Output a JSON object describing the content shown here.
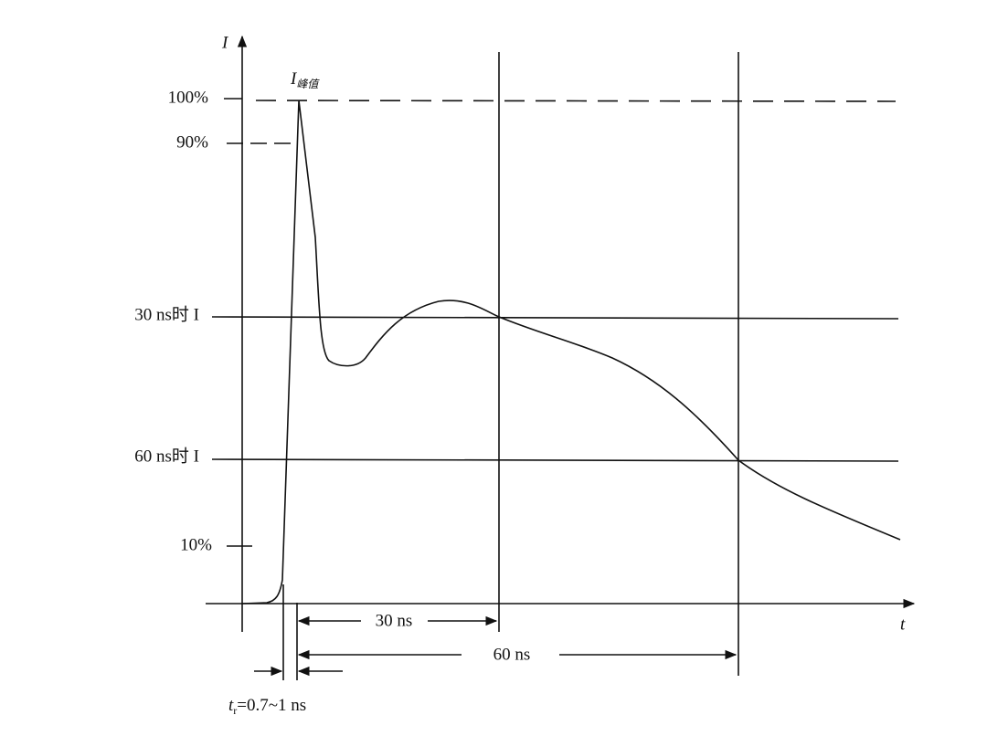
{
  "axis_labels": {
    "y": "I",
    "x": "t"
  },
  "peak_label": {
    "main": "I",
    "sub": "峰值"
  },
  "y_labels": [
    "100%",
    "90%",
    "30 ns时 I",
    "60 ns时 I",
    "10%"
  ],
  "spans": [
    "30 ns",
    "60 ns"
  ],
  "rise_time": {
    "main": "t",
    "sub": "r",
    "rest": "=0.7~1 ns"
  }
}
